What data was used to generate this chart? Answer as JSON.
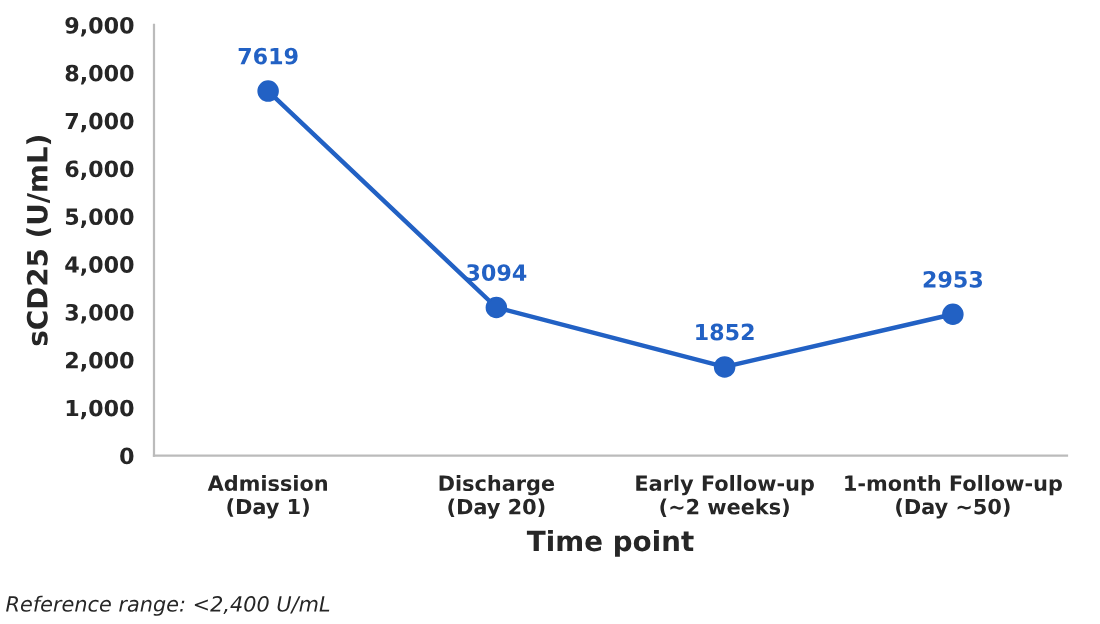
{
  "chart_data": {
    "type": "line",
    "xlabel": "Time point",
    "ylabel": "sCD25 (U/mL)",
    "categories": [
      "Admission\n(Day 1)",
      "Discharge\n(Day 20)",
      "Early Follow-up\n(~2 weeks)",
      "1-month Follow-up\n(Day ~50)"
    ],
    "series": [
      {
        "color": "#2261c4",
        "values": [
          7619,
          3094,
          1852,
          2953
        ]
      }
    ],
    "ylim": [
      0,
      9000
    ],
    "yticks": [
      {
        "value": 0,
        "label": "0"
      },
      {
        "value": 1000,
        "label": "1,000"
      },
      {
        "value": 2000,
        "label": "2,000"
      },
      {
        "value": 3000,
        "label": "3,000"
      },
      {
        "value": 4000,
        "label": "4,000"
      },
      {
        "value": 5000,
        "label": "5,000"
      },
      {
        "value": 6000,
        "label": "6,000"
      },
      {
        "value": 7000,
        "label": "7,000"
      },
      {
        "value": 8000,
        "label": "8,000"
      },
      {
        "value": 9000,
        "label": "9,000"
      }
    ],
    "data_labels": true,
    "marker": "circle",
    "line_style": "solid",
    "grid": false,
    "legend": false,
    "annotations": [
      "Reference range: <2,400 U/mL"
    ]
  }
}
